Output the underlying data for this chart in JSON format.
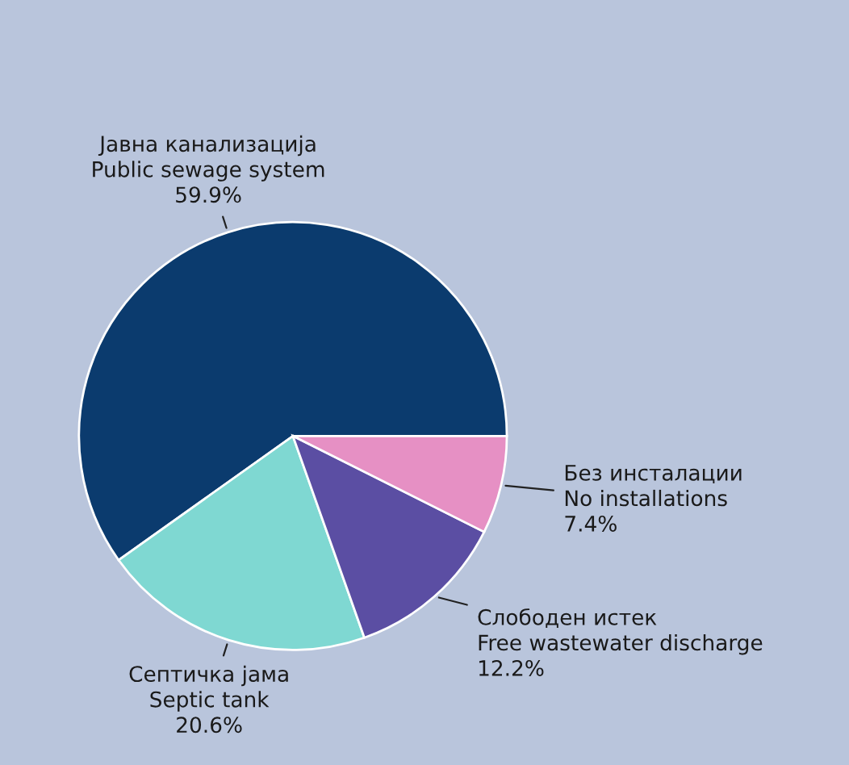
{
  "chart_data": {
    "type": "pie",
    "categories": [
      "Јавна канализација\nPublic sewage system",
      "Септичка јама\nSeptic tank",
      "Слободен истек\nFree wastewater discharge",
      "Без инсталации\nNo installations"
    ],
    "values": [
      59.9,
      20.6,
      12.2,
      7.4
    ],
    "value_labels": [
      "59.9%",
      "20.6%",
      "12.2%",
      "7.4%"
    ],
    "colors": [
      "#0b3b6e",
      "#7fd8d2",
      "#5b4ea3",
      "#e690c4"
    ]
  }
}
